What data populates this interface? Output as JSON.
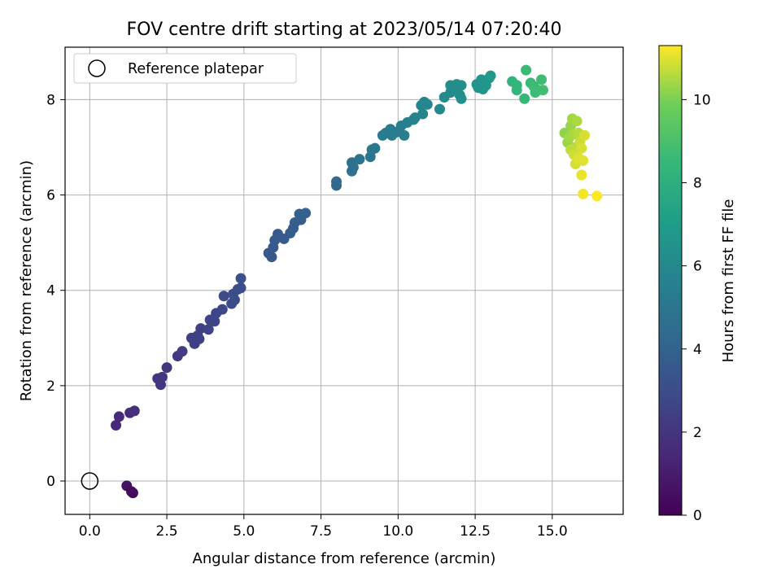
{
  "chart_data": {
    "type": "scatter",
    "title": "FOV centre drift starting at 2023/05/14 07:20:40",
    "xlabel": "Angular distance from reference (arcmin)",
    "ylabel": "Rotation from reference (arcmin)",
    "xlim": [
      -0.8,
      17.3
    ],
    "ylim": [
      -0.7,
      9.1
    ],
    "x_ticks": [
      0.0,
      2.5,
      5.0,
      7.5,
      10.0,
      12.5,
      15.0
    ],
    "x_tick_labels": [
      "0.0",
      "2.5",
      "5.0",
      "7.5",
      "10.0",
      "12.5",
      "15.0"
    ],
    "y_ticks": [
      0,
      2,
      4,
      6,
      8
    ],
    "y_tick_labels": [
      "0",
      "2",
      "4",
      "6",
      "8"
    ],
    "grid": true,
    "legend": {
      "placement": "top-left",
      "label": "Reference platepar",
      "marker": "open-circle"
    },
    "reference_point": {
      "x": 0.0,
      "y": 0.0
    },
    "colorbar": {
      "label": "Hours from first FF file",
      "colormap": "viridis",
      "range": [
        0,
        11.3
      ],
      "ticks": [
        0,
        2,
        4,
        6,
        8,
        10
      ],
      "tick_labels": [
        "0",
        "2",
        "4",
        "6",
        "8",
        "10"
      ]
    },
    "series": [
      {
        "marker_colormap": "viridis",
        "points": [
          {
            "x": 1.2,
            "y": -0.1,
            "c": 0.6
          },
          {
            "x": 1.4,
            "y": -0.25,
            "c": 0.3
          },
          {
            "x": 1.35,
            "y": -0.22,
            "c": 0.4
          },
          {
            "x": 0.85,
            "y": 1.17,
            "c": 1.4
          },
          {
            "x": 0.95,
            "y": 1.35,
            "c": 1.5
          },
          {
            "x": 1.3,
            "y": 1.43,
            "c": 1.6
          },
          {
            "x": 1.45,
            "y": 1.47,
            "c": 1.7
          },
          {
            "x": 2.2,
            "y": 2.15,
            "c": 2.0
          },
          {
            "x": 2.3,
            "y": 2.02,
            "c": 2.0
          },
          {
            "x": 2.35,
            "y": 2.18,
            "c": 2.05
          },
          {
            "x": 2.5,
            "y": 2.38,
            "c": 2.1
          },
          {
            "x": 2.85,
            "y": 2.62,
            "c": 2.2
          },
          {
            "x": 3.0,
            "y": 2.72,
            "c": 2.25
          },
          {
            "x": 3.3,
            "y": 3.0,
            "c": 2.35
          },
          {
            "x": 3.4,
            "y": 2.88,
            "c": 2.4
          },
          {
            "x": 3.5,
            "y": 3.05,
            "c": 2.45
          },
          {
            "x": 3.6,
            "y": 3.2,
            "c": 2.5
          },
          {
            "x": 3.55,
            "y": 2.98,
            "c": 2.5
          },
          {
            "x": 3.85,
            "y": 3.18,
            "c": 2.6
          },
          {
            "x": 3.9,
            "y": 3.38,
            "c": 2.65
          },
          {
            "x": 4.1,
            "y": 3.52,
            "c": 2.7
          },
          {
            "x": 4.05,
            "y": 3.35,
            "c": 2.7
          },
          {
            "x": 4.3,
            "y": 3.6,
            "c": 2.8
          },
          {
            "x": 4.35,
            "y": 3.88,
            "c": 2.85
          },
          {
            "x": 4.6,
            "y": 3.72,
            "c": 2.9
          },
          {
            "x": 4.7,
            "y": 3.8,
            "c": 2.95
          },
          {
            "x": 4.65,
            "y": 3.92,
            "c": 3.0
          },
          {
            "x": 4.8,
            "y": 4.02,
            "c": 3.0
          },
          {
            "x": 4.9,
            "y": 4.05,
            "c": 3.05
          },
          {
            "x": 4.9,
            "y": 4.25,
            "c": 3.1
          },
          {
            "x": 5.8,
            "y": 4.78,
            "c": 3.5
          },
          {
            "x": 5.9,
            "y": 4.7,
            "c": 3.5
          },
          {
            "x": 5.95,
            "y": 4.9,
            "c": 3.55
          },
          {
            "x": 6.0,
            "y": 5.05,
            "c": 3.6
          },
          {
            "x": 6.1,
            "y": 5.18,
            "c": 3.6
          },
          {
            "x": 6.3,
            "y": 5.08,
            "c": 3.65
          },
          {
            "x": 6.5,
            "y": 5.2,
            "c": 3.7
          },
          {
            "x": 6.6,
            "y": 5.3,
            "c": 3.75
          },
          {
            "x": 6.65,
            "y": 5.42,
            "c": 3.8
          },
          {
            "x": 6.8,
            "y": 5.6,
            "c": 3.85
          },
          {
            "x": 6.85,
            "y": 5.48,
            "c": 3.85
          },
          {
            "x": 7.0,
            "y": 5.62,
            "c": 3.9
          },
          {
            "x": 8.0,
            "y": 6.2,
            "c": 4.4
          },
          {
            "x": 8.0,
            "y": 6.28,
            "c": 4.4
          },
          {
            "x": 8.5,
            "y": 6.5,
            "c": 4.7
          },
          {
            "x": 8.5,
            "y": 6.68,
            "c": 4.75
          },
          {
            "x": 8.55,
            "y": 6.58,
            "c": 4.75
          },
          {
            "x": 8.75,
            "y": 6.75,
            "c": 4.85
          },
          {
            "x": 9.1,
            "y": 6.8,
            "c": 5.0
          },
          {
            "x": 9.15,
            "y": 6.95,
            "c": 5.05
          },
          {
            "x": 9.25,
            "y": 6.98,
            "c": 5.1
          },
          {
            "x": 9.5,
            "y": 7.25,
            "c": 5.2
          },
          {
            "x": 9.6,
            "y": 7.3,
            "c": 5.25
          },
          {
            "x": 9.75,
            "y": 7.38,
            "c": 5.3
          },
          {
            "x": 9.8,
            "y": 7.25,
            "c": 5.35
          },
          {
            "x": 9.95,
            "y": 7.32,
            "c": 5.4
          },
          {
            "x": 10.1,
            "y": 7.45,
            "c": 5.5
          },
          {
            "x": 10.2,
            "y": 7.25,
            "c": 5.5
          },
          {
            "x": 10.3,
            "y": 7.52,
            "c": 5.55
          },
          {
            "x": 10.5,
            "y": 7.58,
            "c": 5.6
          },
          {
            "x": 10.55,
            "y": 7.62,
            "c": 5.65
          },
          {
            "x": 10.75,
            "y": 7.88,
            "c": 5.75
          },
          {
            "x": 10.8,
            "y": 7.7,
            "c": 5.8
          },
          {
            "x": 10.85,
            "y": 7.95,
            "c": 5.8
          },
          {
            "x": 10.95,
            "y": 7.9,
            "c": 5.85
          },
          {
            "x": 11.35,
            "y": 7.8,
            "c": 6.0
          },
          {
            "x": 11.5,
            "y": 8.05,
            "c": 6.05
          },
          {
            "x": 11.7,
            "y": 8.15,
            "c": 6.1
          },
          {
            "x": 11.7,
            "y": 8.3,
            "c": 6.15
          },
          {
            "x": 11.85,
            "y": 8.2,
            "c": 6.2
          },
          {
            "x": 11.9,
            "y": 8.32,
            "c": 6.2
          },
          {
            "x": 12.0,
            "y": 8.1,
            "c": 6.25
          },
          {
            "x": 12.05,
            "y": 8.3,
            "c": 6.3
          },
          {
            "x": 12.05,
            "y": 8.02,
            "c": 6.3
          },
          {
            "x": 12.55,
            "y": 8.32,
            "c": 6.5
          },
          {
            "x": 12.6,
            "y": 8.25,
            "c": 6.55
          },
          {
            "x": 12.7,
            "y": 8.42,
            "c": 6.6
          },
          {
            "x": 12.75,
            "y": 8.22,
            "c": 6.6
          },
          {
            "x": 12.85,
            "y": 8.3,
            "c": 6.65
          },
          {
            "x": 12.95,
            "y": 8.45,
            "c": 6.7
          },
          {
            "x": 13.0,
            "y": 8.5,
            "c": 6.75
          },
          {
            "x": 13.7,
            "y": 8.38,
            "c": 8.3
          },
          {
            "x": 13.85,
            "y": 8.3,
            "c": 8.4
          },
          {
            "x": 13.85,
            "y": 8.2,
            "c": 8.4
          },
          {
            "x": 14.1,
            "y": 8.02,
            "c": 8.5
          },
          {
            "x": 14.15,
            "y": 8.62,
            "c": 8.6
          },
          {
            "x": 14.3,
            "y": 8.35,
            "c": 8.6
          },
          {
            "x": 14.4,
            "y": 8.28,
            "c": 8.65
          },
          {
            "x": 14.45,
            "y": 8.15,
            "c": 8.7
          },
          {
            "x": 14.55,
            "y": 8.2,
            "c": 8.7
          },
          {
            "x": 14.65,
            "y": 8.42,
            "c": 8.75
          },
          {
            "x": 14.7,
            "y": 8.2,
            "c": 8.8
          },
          {
            "x": 15.4,
            "y": 7.3,
            "c": 10.2
          },
          {
            "x": 15.5,
            "y": 7.1,
            "c": 10.3
          },
          {
            "x": 15.55,
            "y": 7.2,
            "c": 10.4
          },
          {
            "x": 15.6,
            "y": 7.45,
            "c": 10.3
          },
          {
            "x": 15.65,
            "y": 7.6,
            "c": 10.4
          },
          {
            "x": 15.7,
            "y": 7.28,
            "c": 10.5
          },
          {
            "x": 15.75,
            "y": 7.0,
            "c": 10.6
          },
          {
            "x": 15.8,
            "y": 7.55,
            "c": 10.5
          },
          {
            "x": 15.85,
            "y": 7.3,
            "c": 10.6
          },
          {
            "x": 15.6,
            "y": 6.95,
            "c": 10.7
          },
          {
            "x": 15.7,
            "y": 6.85,
            "c": 10.8
          },
          {
            "x": 15.75,
            "y": 6.65,
            "c": 10.9
          },
          {
            "x": 15.9,
            "y": 7.12,
            "c": 10.8
          },
          {
            "x": 15.95,
            "y": 6.98,
            "c": 10.9
          },
          {
            "x": 15.85,
            "y": 6.78,
            "c": 11.0
          },
          {
            "x": 16.0,
            "y": 6.72,
            "c": 11.0
          },
          {
            "x": 16.05,
            "y": 7.25,
            "c": 10.9
          },
          {
            "x": 15.95,
            "y": 6.42,
            "c": 11.1
          },
          {
            "x": 16.0,
            "y": 6.02,
            "c": 11.2
          },
          {
            "x": 16.45,
            "y": 5.98,
            "c": 11.3
          }
        ]
      }
    ]
  }
}
